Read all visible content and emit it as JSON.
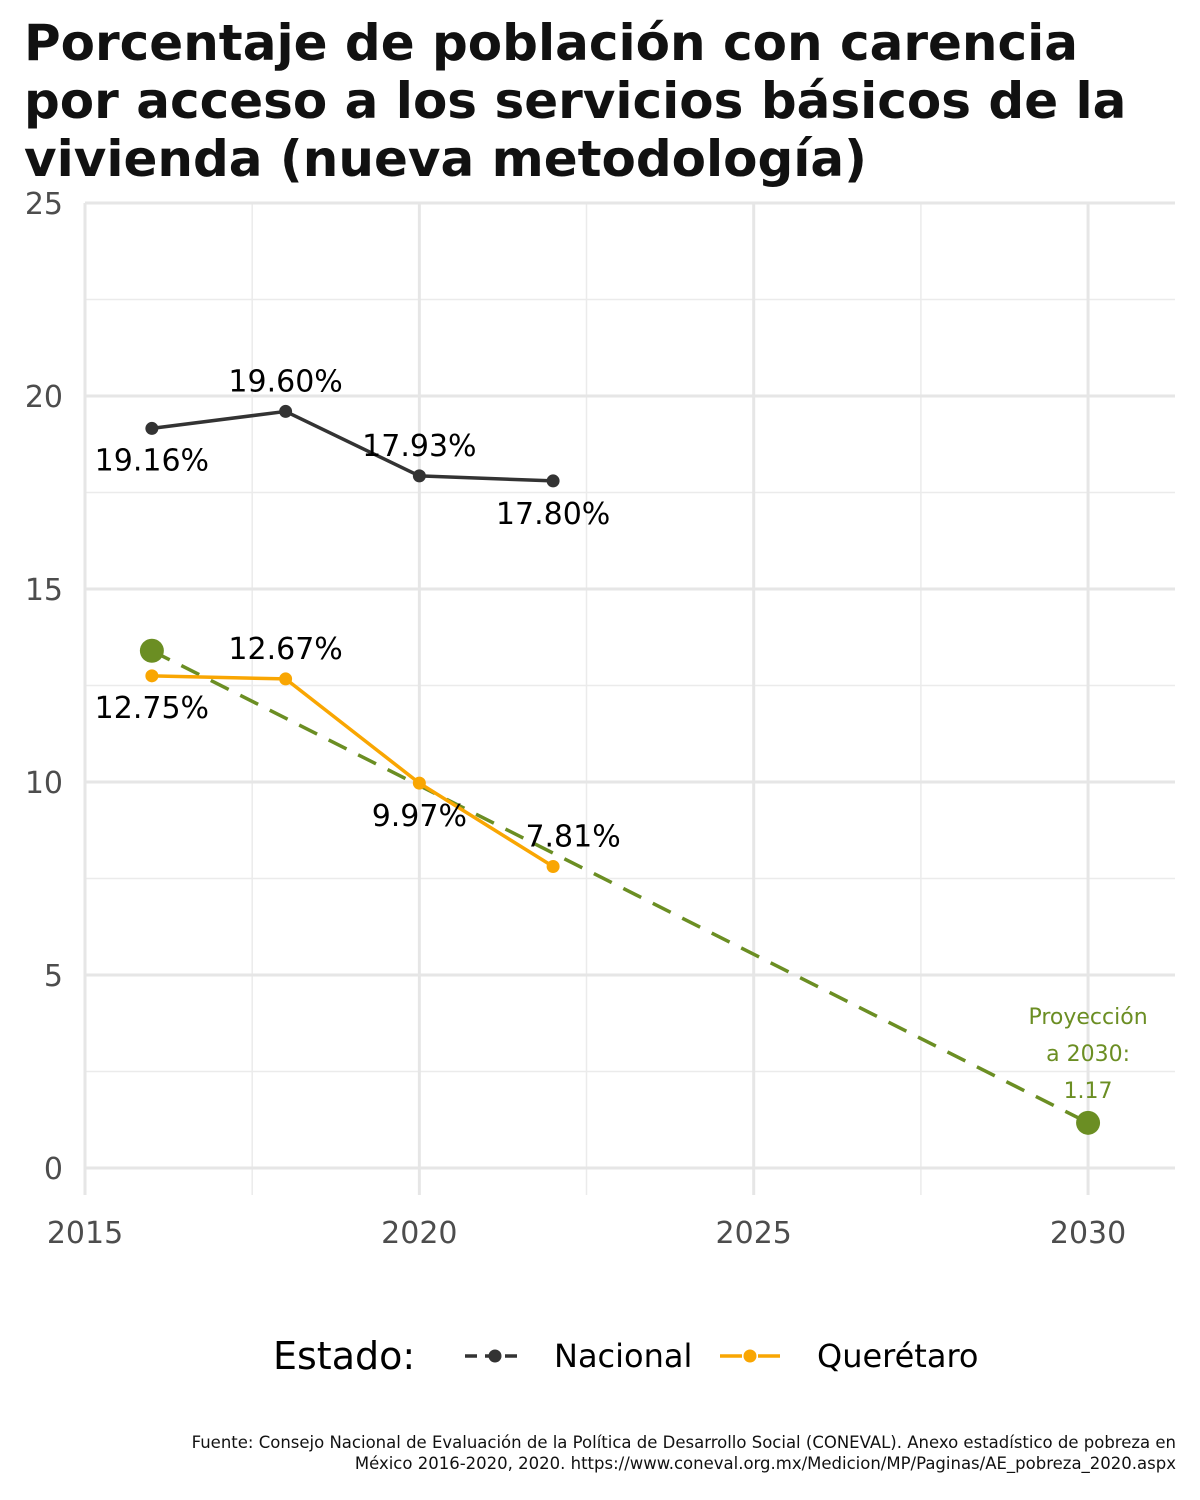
{
  "title_lines": [
    "Porcentaje de población con carencia",
    "por acceso a los servicios básicos de la",
    "vivienda (nueva metodología)"
  ],
  "source_lines": [
    "Fuente: Consejo Nacional de Evaluación de la Política de Desarrollo Social (CONEVAL). Anexo estadístico de pobreza en",
    "México 2016-2020, 2020. https://www.coneval.org.mx/Medicion/MP/Paginas/AE_pobreza_2020.aspx"
  ],
  "chart_data": {
    "type": "line",
    "title": "Porcentaje de población con carencia por acceso a los servicios básicos de la vivienda (nueva metodología)",
    "xlabel": "",
    "ylabel": "",
    "xlim": [
      2015,
      2031.3
    ],
    "ylim": [
      -0.7,
      25
    ],
    "x_ticks": [
      2015,
      2020,
      2025,
      2030
    ],
    "y_ticks": [
      0,
      5,
      10,
      15,
      20,
      25
    ],
    "grid": true,
    "legend": {
      "title": "Estado:",
      "placement": "bottom",
      "entries": [
        "Nacional",
        "Querétaro"
      ]
    },
    "series": [
      {
        "name": "Nacional",
        "color": "#333333",
        "x": [
          2016,
          2018,
          2020,
          2022
        ],
        "y": [
          19.16,
          19.6,
          17.93,
          17.8
        ],
        "labels": [
          "19.16%",
          "19.60%",
          "17.93%",
          "17.80%"
        ]
      },
      {
        "name": "Querétaro",
        "color": "#F9A602",
        "x": [
          2016,
          2018,
          2020,
          2022
        ],
        "y": [
          12.75,
          12.67,
          9.97,
          7.81
        ],
        "labels": [
          "12.75%",
          "12.67%",
          "9.97%",
          "7.81%"
        ]
      }
    ],
    "projection": {
      "color": "#6B8E23",
      "style": "dashed",
      "x": [
        2016,
        2030
      ],
      "y": [
        13.4,
        1.17
      ],
      "annotation_lines": [
        "Proyección",
        "a 2030:",
        "1.17"
      ]
    }
  }
}
